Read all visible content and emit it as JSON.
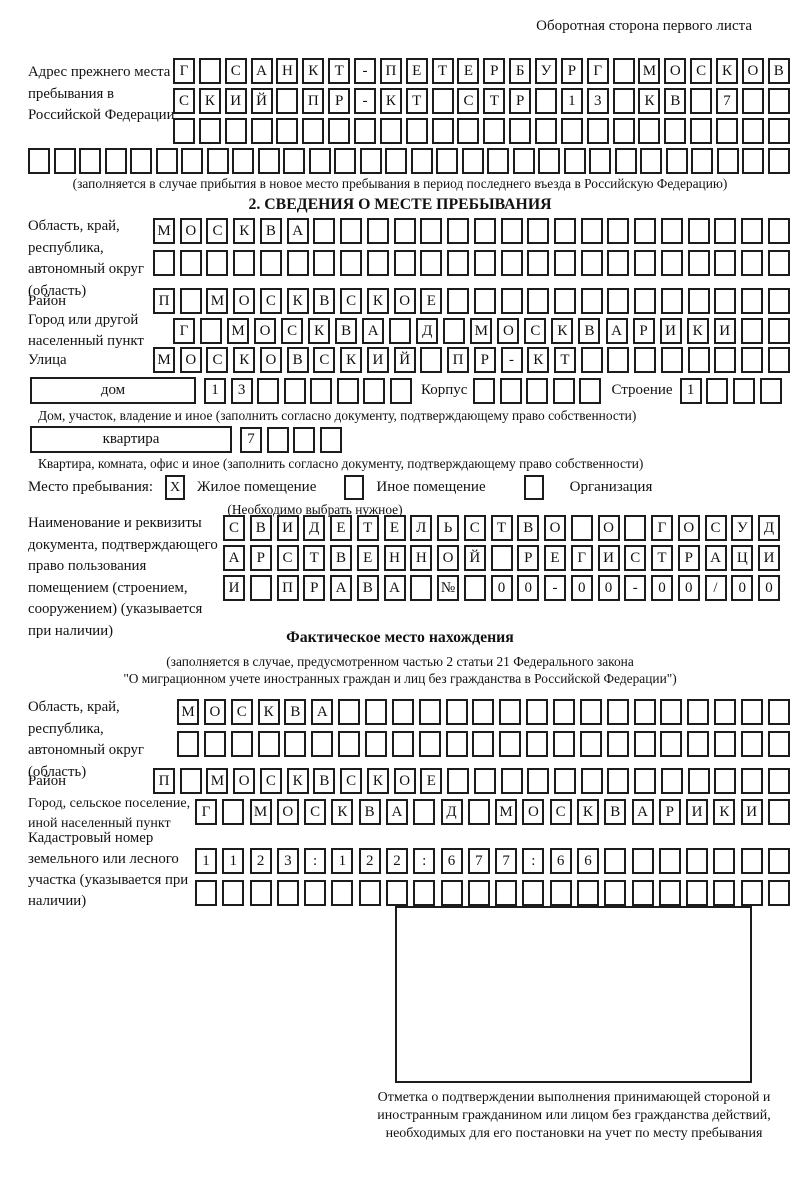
{
  "page": {
    "header_note": "Оборотная сторона первого листа"
  },
  "prev_address": {
    "label": "Адрес прежнего места пребывания в Российской Федерации",
    "row1": {
      "text": "Г САНКТ-ПЕТЕРБУРГ МОСКОВ",
      "count": 24
    },
    "row2": {
      "text": "СКИЙ ПР-КТ СТР 13 КВ 7",
      "count": 24
    },
    "row3": {
      "text": "",
      "count": 24
    },
    "row4": {
      "text": "",
      "count": 30
    },
    "caption": "(заполняется в случае прибытия в новое место пребывания в период последнего въезда в Российскую Федерацию)"
  },
  "section2": {
    "title": "2. СВЕДЕНИЯ О МЕСТЕ ПРЕБЫВАНИЯ",
    "region": {
      "label": "Область, край, республика, автономный округ (область)",
      "row1": {
        "text": "МОСКВА",
        "count": 24
      },
      "row2": {
        "text": "",
        "count": 24
      }
    },
    "district": {
      "label": "Район",
      "row": {
        "text": "П МОСКВСКОЕ",
        "count": 24
      }
    },
    "city": {
      "label": "Город или другой населенный пункт",
      "row": {
        "text": "Г МОСКВА Д МОСКВАРИКИ",
        "count": 23
      }
    },
    "street": {
      "label": "Улица",
      "row": {
        "text": "МОСКОВСКИЙ ПР-КТ",
        "count": 24
      }
    },
    "house": {
      "box_label": "дом",
      "cells": {
        "text": "13",
        "count": 8
      },
      "korpus_label": "Корпус",
      "korpus_cells": {
        "text": "",
        "count": 5
      },
      "stroenie_label": "Строение",
      "stroenie_cells": {
        "text": "1",
        "count": 4
      },
      "caption": "Дом, участок, владение и иное (заполнить согласно документу, подтверждающему право собственности)"
    },
    "apartment": {
      "box_label": "квартира",
      "cells": {
        "text": "7",
        "count": 4
      },
      "caption": "Квартира, комната, офис и иное (заполнить согласно документу, подтверждающему право собственности)"
    },
    "stay_type": {
      "label": "Место пребывания:",
      "options": [
        {
          "label": "Жилое помещение",
          "checked": "X"
        },
        {
          "label": "Иное помещение",
          "checked": ""
        },
        {
          "label": "Организация",
          "checked": ""
        }
      ],
      "caption": "(Необходимо выбрать нужное)"
    },
    "document": {
      "label": "Наименование и реквизиты документа, подтверждающего право пользования помещением (строением, сооружением) (указывается при наличии)",
      "row1": {
        "text": "СВИДЕТЕЛЬСТВО О ГОСУД",
        "count": 21
      },
      "row2": {
        "text": "АРСТВЕННОЙ РЕГИСТРАЦИ",
        "count": 21
      },
      "row3": {
        "text": "И ПРАВА № 00-00-00/000",
        "count": 21
      }
    }
  },
  "actual_location": {
    "title": "Фактическое место нахождения",
    "caption_line1": "(заполняется в случае, предусмотренном частью 2 статьи 21 Федерального закона",
    "caption_line2": "\"О миграционном учете иностранных граждан и лиц без гражданства в Российской Федерации\")",
    "region": {
      "label": "Область, край, республика, автономный округ (область)",
      "row1": {
        "text": "МОСКВА",
        "count": 23
      },
      "row2": {
        "text": "",
        "count": 23
      }
    },
    "district": {
      "label": "Район",
      "row": {
        "text": "П МОСКВСКОЕ",
        "count": 24
      }
    },
    "city": {
      "label": "Город, сельское поселение, иной населенный пункт",
      "row": {
        "text": "Г МОСКВА Д МОСКВАРИКИ",
        "count": 22
      }
    },
    "cadastre": {
      "label": "Кадастровый номер земельного или лесного участка (указывается при наличии)",
      "row1": {
        "text": "1123:122:677:66",
        "count": 22
      },
      "row2": {
        "text": "",
        "count": 22
      }
    },
    "stamp_caption": "Отметка о подтверждении выполнения принимающей стороной и иностранным гражданином или лицом без гражданства действий, необходимых для его постановки на учет по месту пребывания"
  }
}
